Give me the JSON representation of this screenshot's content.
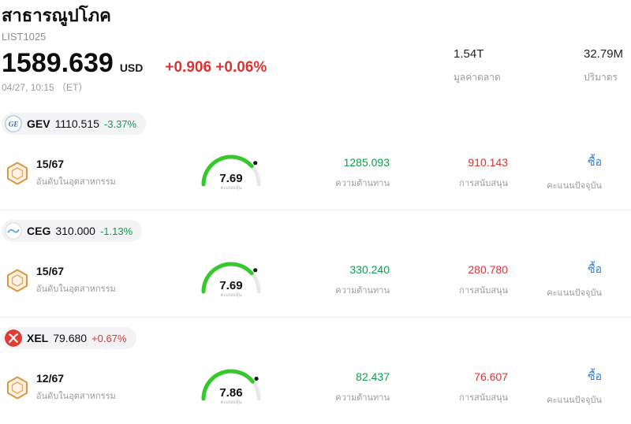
{
  "header": {
    "title": "สาธารณูปโภค",
    "list_id": "LIST1025",
    "price": "1589.639",
    "currency": "USD",
    "change": "+0.906 +0.06%",
    "datetime": "04/27, 10:15 （ET）",
    "market_cap_value": "1.54T",
    "market_cap_label": "มูลค่าตลาด",
    "volume_value": "32.79M",
    "volume_label": "ปริมาตร"
  },
  "labels": {
    "industry_rank": "อันดับในอุตสาหกรรม",
    "stock_score": "คะแนนหุ้น",
    "resistance": "ความต้านทาน",
    "support": "การสนับสนุน",
    "current_score": "คะแนนปัจจุบัน"
  },
  "colors": {
    "up_red": "#e03131",
    "down_green": "#0c9e4c",
    "buy_blue": "#2a7de1",
    "gauge_green": "#35c92d",
    "gauge_track": "#e8e8ea"
  },
  "stocks": [
    {
      "ticker": "GEV",
      "price": "1110.515",
      "change": "-3.37%",
      "direction": "down",
      "rank": "15/67",
      "score": "7.69",
      "resistance": "1285.093",
      "support": "910.143",
      "signal": "ซื้อ"
    },
    {
      "ticker": "CEG",
      "price": "310.000",
      "change": "-1.13%",
      "direction": "down",
      "rank": "15/67",
      "score": "7.69",
      "resistance": "330.240",
      "support": "280.780",
      "signal": "ซื้อ"
    },
    {
      "ticker": "XEL",
      "price": "79.680",
      "change": "+0.67%",
      "direction": "up",
      "rank": "12/67",
      "score": "7.86",
      "resistance": "82.437",
      "support": "76.607",
      "signal": "ซื้อ"
    }
  ]
}
